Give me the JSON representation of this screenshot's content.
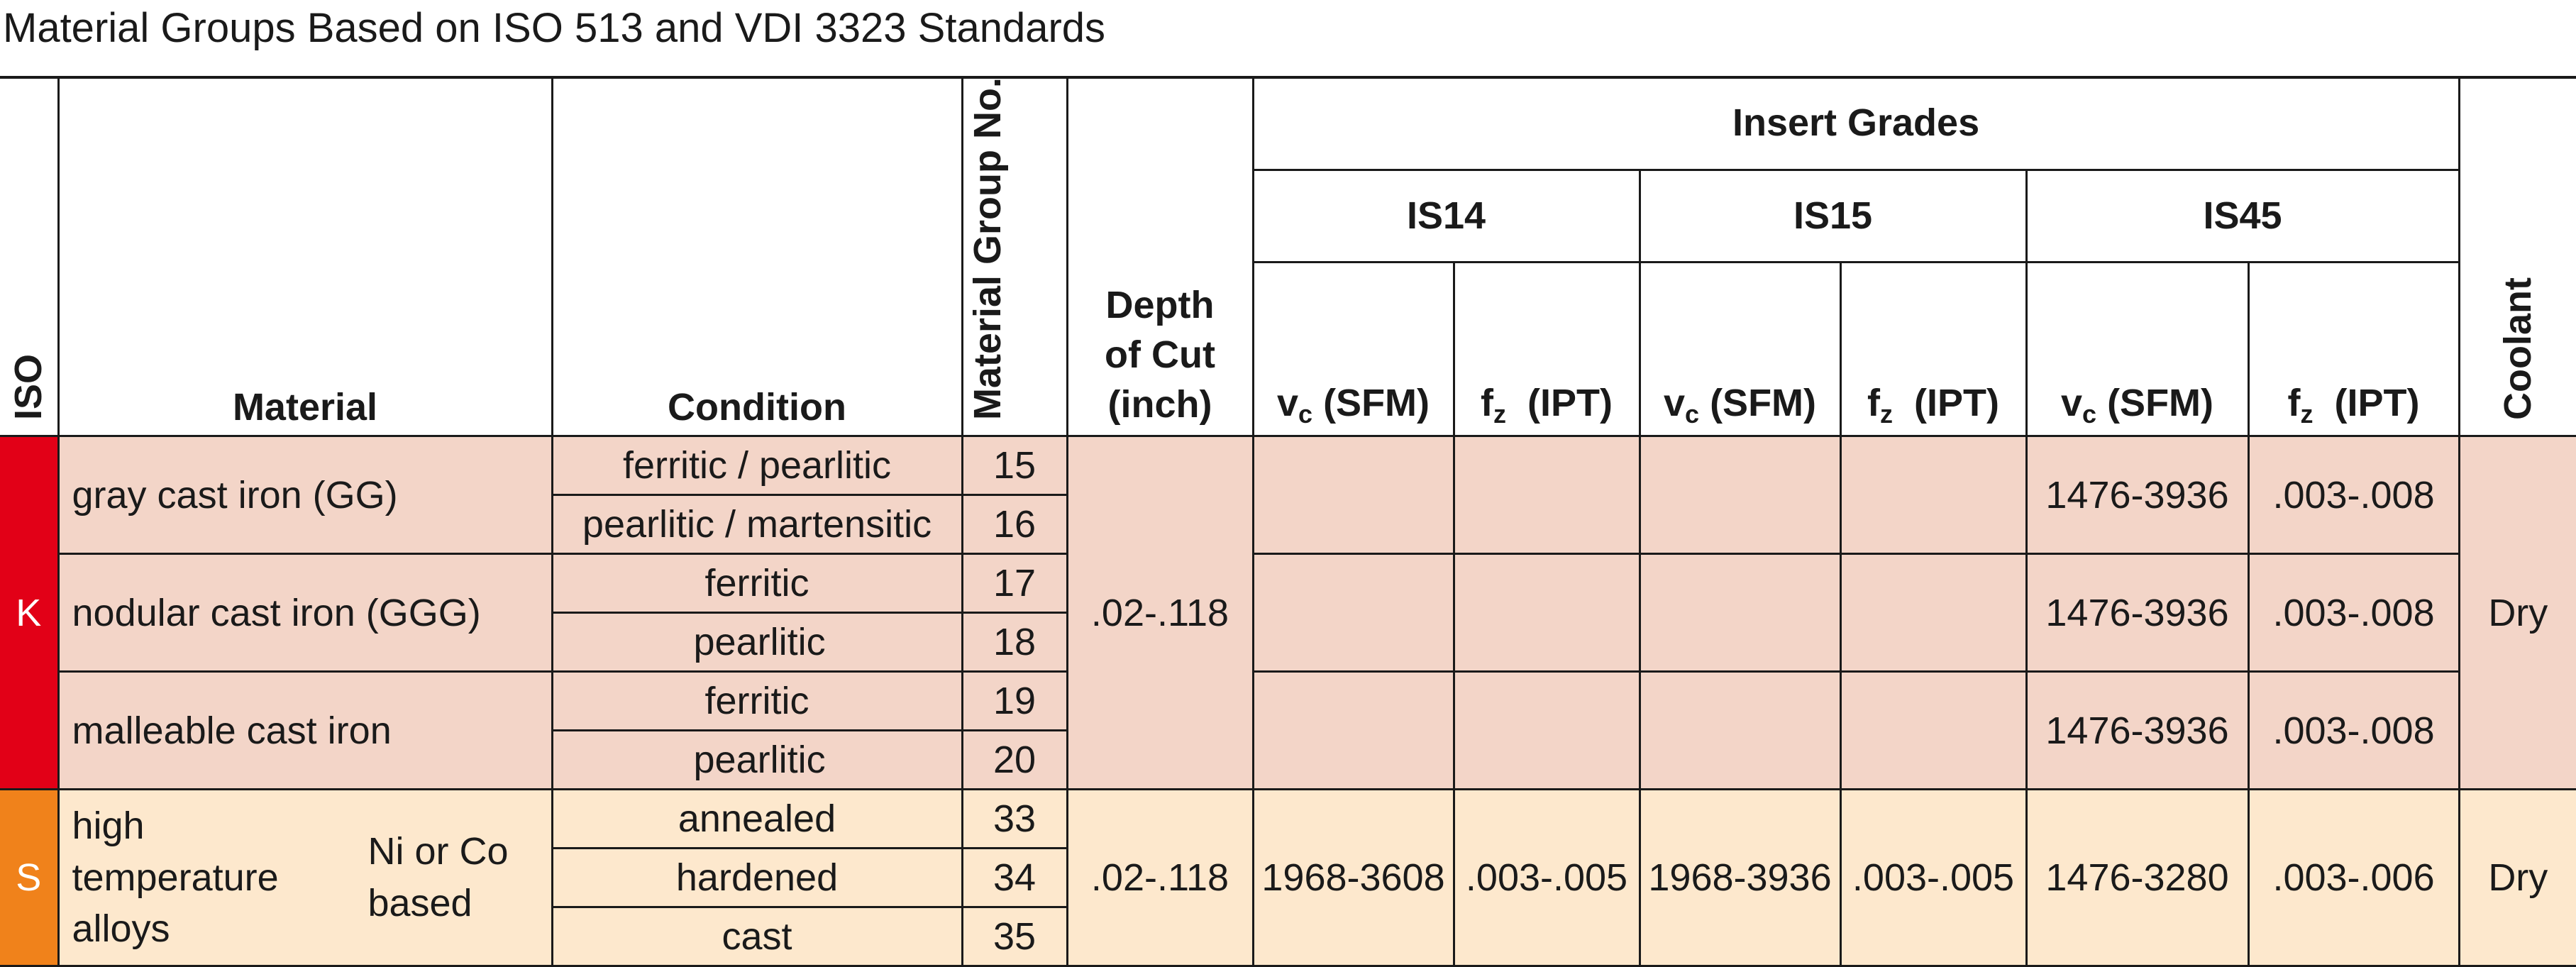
{
  "title": "Material Groups Based on ISO 513 and VDI 3323 Standards",
  "headers": {
    "iso": "ISO",
    "material": "Material",
    "condition": "Condition",
    "group_no": "Material Group No.",
    "depth_line1": "Depth",
    "depth_line2": "of Cut",
    "depth_line3": "(inch)",
    "insert_grades": "Insert Grades",
    "grades": [
      "IS14",
      "IS15",
      "IS45"
    ],
    "vc_v": "v",
    "vc_sub": "c",
    "vc_unit": " (SFM)",
    "fz_f": "f",
    "fz_sub": "z",
    "fz_unit": "  (IPT)",
    "coolant": "Coolant"
  },
  "groups": {
    "K": {
      "iso": "K",
      "depth": ".02-.118",
      "coolant": "Dry",
      "materials": [
        {
          "name": "gray cast iron (GG)",
          "conditions": [
            "ferritic / pearlitic",
            "pearlitic / martensitic"
          ],
          "groups": [
            "15",
            "16"
          ],
          "is45_vc": "1476-3936",
          "is45_fz": ".003-.008"
        },
        {
          "name": "nodular cast iron (GGG)",
          "conditions": [
            "ferritic",
            "pearlitic"
          ],
          "groups": [
            "17",
            "18"
          ],
          "is45_vc": "1476-3936",
          "is45_fz": ".003-.008"
        },
        {
          "name": "malleable cast iron",
          "conditions": [
            "ferritic",
            "pearlitic"
          ],
          "groups": [
            "19",
            "20"
          ],
          "is45_vc": "1476-3936",
          "is45_fz": ".003-.008"
        }
      ]
    },
    "S": {
      "iso": "S",
      "material_lines": [
        "high",
        "temperature",
        "alloys"
      ],
      "subtype_lines": [
        "Ni or Co",
        "based"
      ],
      "conditions": [
        "annealed",
        "hardened",
        "cast"
      ],
      "groups": [
        "33",
        "34",
        "35"
      ],
      "depth": ".02-.118",
      "is14_vc": "1968-3608",
      "is14_fz": ".003-.005",
      "is15_vc": "1968-3936",
      "is15_fz": ".003-.005",
      "is45_vc": "1476-3280",
      "is45_fz": ".003-.006",
      "coolant": "Dry"
    }
  },
  "colors": {
    "iso_k": "#e20017",
    "iso_s": "#f0821b",
    "k_bg": "#f3d5c8",
    "s_bg": "#fde8cd"
  }
}
